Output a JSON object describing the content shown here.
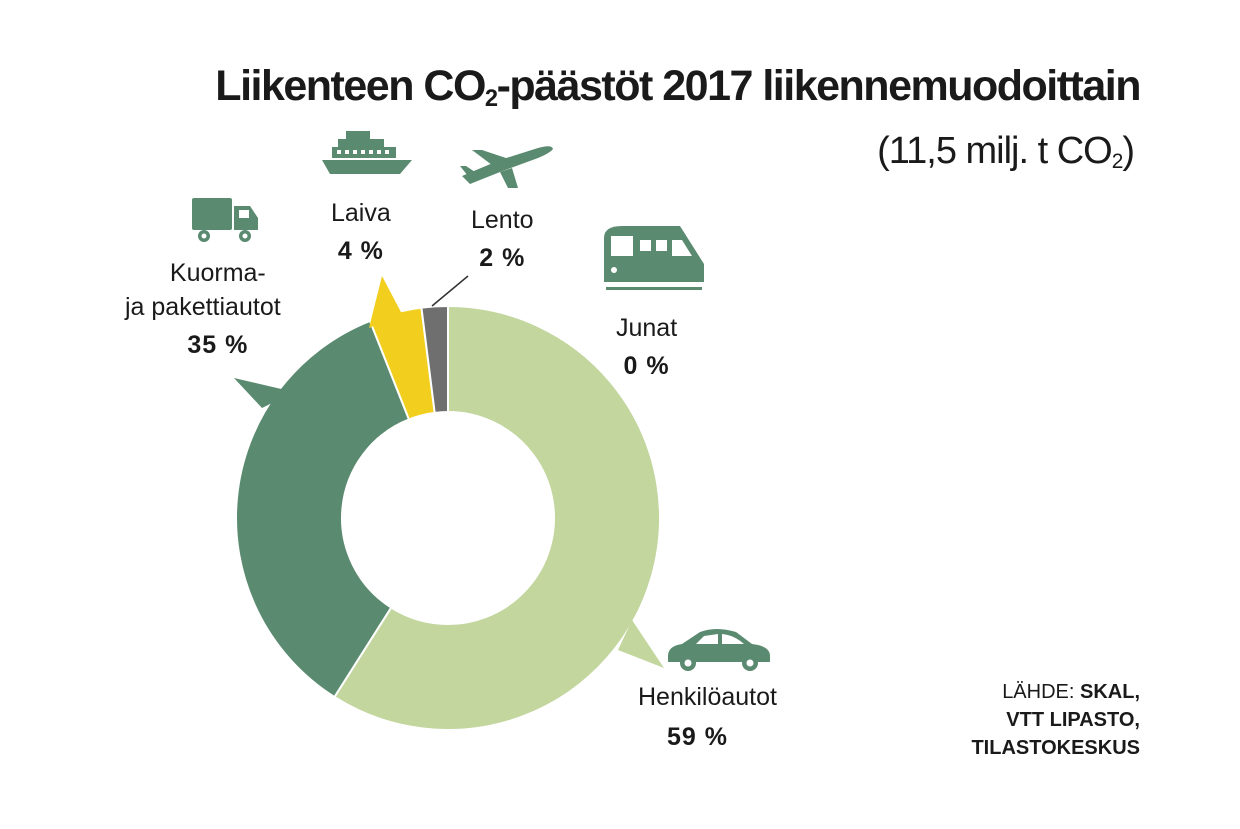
{
  "title": {
    "part1": "Liikenteen CO",
    "sub": "2",
    "part2": "-päästöt 2017 liikennemuodoittain"
  },
  "subtitle": {
    "part1": "(11,5 milj. t CO",
    "sub": "2",
    "part2": ")"
  },
  "source": {
    "prefix": "LÄHDE: ",
    "line1": "SKAL,",
    "line2": "VTT LIPASTO,",
    "line3": "TILASTOKESKUS"
  },
  "colors": {
    "henkiloautot": "#c2d69e",
    "kuorma": "#5a8a6f",
    "laiva": "#f2cf1f",
    "lento": "#6f6f6f",
    "junat": "#5a8a6f",
    "icon": "#5a8a6f"
  },
  "icons": [
    "ship-icon",
    "airplane-icon",
    "truck-icon",
    "train-icon",
    "car-icon"
  ],
  "chart_data": {
    "type": "pie",
    "donut": true,
    "title": "Liikenteen CO2-päästöt 2017 liikennemuodoittain",
    "subtitle": "(11,5 milj. t CO2)",
    "slices": [
      {
        "label": "Henkilöautot",
        "value": 59,
        "display": "59 %",
        "color": "#c2d69e"
      },
      {
        "label": "Kuorma- ja pakettiautot",
        "label_line1": "Kuorma-",
        "label_line2": "ja pakettiautot",
        "value": 35,
        "display": "35 %",
        "color": "#5a8a6f"
      },
      {
        "label": "Laiva",
        "value": 4,
        "display": "4 %",
        "color": "#f2cf1f"
      },
      {
        "label": "Lento",
        "value": 2,
        "display": "2 %",
        "color": "#6f6f6f"
      },
      {
        "label": "Junat",
        "value": 0,
        "display": "0 %",
        "color": "#5a8a6f"
      }
    ]
  }
}
